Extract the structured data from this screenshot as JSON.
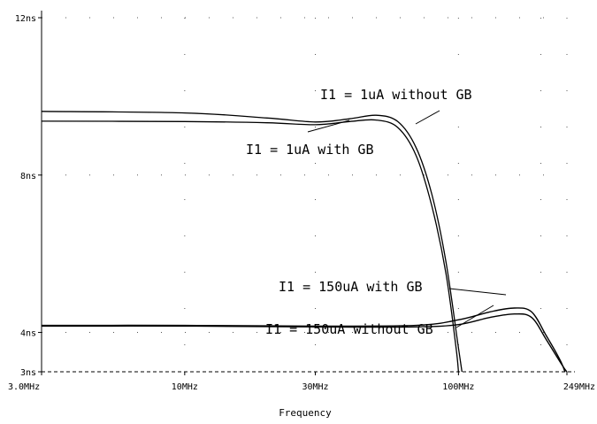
{
  "chart_data": {
    "type": "line",
    "xlabel": "Frequency",
    "ylabel": "",
    "x_scale": "log",
    "xlim": [
      "3.0MHz",
      "249MHz"
    ],
    "ylim": [
      "3ns",
      "12ns"
    ],
    "x_ticks": [
      "3.0MHz",
      "10MHz",
      "30MHz",
      "100MHz",
      "249MHz"
    ],
    "y_ticks": [
      "12ns",
      "8ns",
      "4ns",
      "3ns"
    ],
    "grid": "dotted",
    "series": [
      {
        "name": "I1 = 1uA without GB",
        "points": [
          {
            "x": "3.0MHz",
            "y": "9.62ns"
          },
          {
            "x": "10MHz",
            "y": "9.58ns"
          },
          {
            "x": "20MHz",
            "y": "9.45ns"
          },
          {
            "x": "30MHz",
            "y": "9.35ns"
          },
          {
            "x": "40MHz",
            "y": "9.43ns"
          },
          {
            "x": "50MHz",
            "y": "9.52ns"
          },
          {
            "x": "60MHz",
            "y": "9.36ns"
          },
          {
            "x": "70MHz",
            "y": "8.70ns"
          },
          {
            "x": "80MHz",
            "y": "7.50ns"
          },
          {
            "x": "90MHz",
            "y": "5.80ns"
          },
          {
            "x": "100MHz",
            "y": "3.60ns"
          },
          {
            "x": "103MHz",
            "y": "3.00ns"
          }
        ]
      },
      {
        "name": "I1 = 1uA with GB",
        "points": [
          {
            "x": "3.0MHz",
            "y": "9.37ns"
          },
          {
            "x": "10MHz",
            "y": "9.36ns"
          },
          {
            "x": "20MHz",
            "y": "9.33ns"
          },
          {
            "x": "30MHz",
            "y": "9.28ns"
          },
          {
            "x": "40MHz",
            "y": "9.36ns"
          },
          {
            "x": "50MHz",
            "y": "9.40ns"
          },
          {
            "x": "60MHz",
            "y": "9.21ns"
          },
          {
            "x": "70MHz",
            "y": "8.50ns"
          },
          {
            "x": "80MHz",
            "y": "7.20ns"
          },
          {
            "x": "90MHz",
            "y": "5.50ns"
          },
          {
            "x": "98MHz",
            "y": "3.60ns"
          },
          {
            "x": "100MHz",
            "y": "3.00ns"
          }
        ]
      },
      {
        "name": "I1 = 150uA with GB",
        "points": [
          {
            "x": "3.0MHz",
            "y": "4.18ns"
          },
          {
            "x": "10MHz",
            "y": "4.18ns"
          },
          {
            "x": "30MHz",
            "y": "4.16ns"
          },
          {
            "x": "70MHz",
            "y": "4.18ns"
          },
          {
            "x": "100MHz",
            "y": "4.32ns"
          },
          {
            "x": "130MHz",
            "y": "4.52ns"
          },
          {
            "x": "160MHz",
            "y": "4.62ns"
          },
          {
            "x": "185MHz",
            "y": "4.52ns"
          },
          {
            "x": "210MHz",
            "y": "3.90ns"
          },
          {
            "x": "235MHz",
            "y": "3.30ns"
          },
          {
            "x": "245MHz",
            "y": "3.00ns"
          }
        ]
      },
      {
        "name": "I1 = 150uA without GB",
        "points": [
          {
            "x": "3.0MHz",
            "y": "4.16ns"
          },
          {
            "x": "10MHz",
            "y": "4.16ns"
          },
          {
            "x": "30MHz",
            "y": "4.14ns"
          },
          {
            "x": "70MHz",
            "y": "4.14ns"
          },
          {
            "x": "100MHz",
            "y": "4.20ns"
          },
          {
            "x": "130MHz",
            "y": "4.38ns"
          },
          {
            "x": "160MHz",
            "y": "4.47ns"
          },
          {
            "x": "185MHz",
            "y": "4.38ns"
          },
          {
            "x": "210MHz",
            "y": "3.80ns"
          },
          {
            "x": "240MHz",
            "y": "3.15ns"
          },
          {
            "x": "249MHz",
            "y": "3.00ns"
          }
        ]
      }
    ],
    "annotations": [
      {
        "text": "I1 = 1uA without GB",
        "series": 0
      },
      {
        "text": "I1 = 1uA with GB",
        "series": 1
      },
      {
        "text": "I1 = 150uA with GB",
        "series": 2
      },
      {
        "text": "I1 = 150uA without GB",
        "series": 3
      }
    ]
  }
}
